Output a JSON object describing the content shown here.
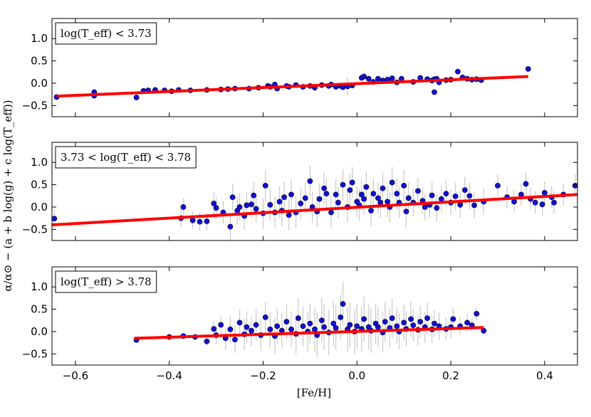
{
  "chart_data": {
    "type": "scatter",
    "xlabel": "[Fe/H]",
    "ylabel": "α/α⊙ − (a + b log(g) + c log(T_eff))",
    "xlim": [
      -0.65,
      0.47
    ],
    "ylim": [
      -0.75,
      1.45
    ],
    "x_ticks": [
      -0.6,
      -0.4,
      -0.2,
      0.0,
      0.2,
      0.4
    ],
    "x_tick_labels": [
      "−0.6",
      "−0.4",
      "−0.2",
      "0.0",
      "0.2",
      "0.4"
    ],
    "y_ticks": [
      -0.5,
      0.0,
      0.5,
      1.0
    ],
    "y_tick_labels": [
      "−0.5",
      "0.0",
      "0.5",
      "1.0"
    ],
    "grid": false,
    "colors": {
      "points": "#1010d0",
      "point_edge": "#000033",
      "fit_line": "#ff0000",
      "error_bars": "#c8c8c8"
    },
    "panels": [
      {
        "label": "log(T_eff) < 3.73",
        "fit": {
          "x": [
            -0.64,
            0.365
          ],
          "y": [
            -0.29,
            0.15
          ]
        },
        "points": [
          [
            -0.64,
            -0.31,
            0.03
          ],
          [
            -0.56,
            -0.28,
            0.03
          ],
          [
            -0.56,
            -0.2,
            0.03
          ],
          [
            -0.47,
            -0.32,
            0.03
          ],
          [
            -0.455,
            -0.17,
            0.03
          ],
          [
            -0.445,
            -0.16,
            0.03
          ],
          [
            -0.43,
            -0.15,
            0.03
          ],
          [
            -0.41,
            -0.16,
            0.03
          ],
          [
            -0.395,
            -0.18,
            0.03
          ],
          [
            -0.38,
            -0.15,
            0.03
          ],
          [
            -0.355,
            -0.16,
            0.03
          ],
          [
            -0.32,
            -0.15,
            0.03
          ],
          [
            -0.29,
            -0.14,
            0.03
          ],
          [
            -0.275,
            -0.13,
            0.04
          ],
          [
            -0.26,
            -0.12,
            0.04
          ],
          [
            -0.23,
            -0.12,
            0.04
          ],
          [
            -0.21,
            -0.1,
            0.04
          ],
          [
            -0.19,
            -0.06,
            0.04
          ],
          [
            -0.185,
            -0.08,
            0.05
          ],
          [
            -0.175,
            -0.03,
            0.05
          ],
          [
            -0.17,
            -0.12,
            0.05
          ],
          [
            -0.15,
            -0.06,
            0.05
          ],
          [
            -0.145,
            -0.08,
            0.05
          ],
          [
            -0.13,
            -0.04,
            0.05
          ],
          [
            -0.115,
            -0.08,
            0.05
          ],
          [
            -0.1,
            -0.06,
            0.05
          ],
          [
            -0.09,
            -0.1,
            0.05
          ],
          [
            -0.075,
            -0.04,
            0.05
          ],
          [
            -0.06,
            -0.06,
            0.05
          ],
          [
            -0.055,
            -0.03,
            0.05
          ],
          [
            -0.045,
            -0.08,
            0.05
          ],
          [
            -0.035,
            -0.06,
            0.05
          ],
          [
            -0.03,
            -0.09,
            0.05
          ],
          [
            -0.02,
            -0.07,
            0.2
          ],
          [
            -0.01,
            -0.05,
            0.05
          ],
          [
            0.01,
            0.12,
            0.08
          ],
          [
            0.015,
            0.15,
            0.08
          ],
          [
            0.025,
            0.1,
            0.08
          ],
          [
            0.035,
            0.03,
            0.05
          ],
          [
            0.045,
            0.1,
            0.05
          ],
          [
            0.055,
            0.06,
            0.05
          ],
          [
            0.065,
            0.08,
            0.05
          ],
          [
            0.075,
            0.11,
            0.05
          ],
          [
            0.085,
            0.02,
            0.05
          ],
          [
            0.095,
            0.1,
            0.05
          ],
          [
            0.12,
            0.03,
            0.05
          ],
          [
            0.135,
            0.12,
            0.05
          ],
          [
            0.15,
            0.09,
            0.05
          ],
          [
            0.16,
            0.06,
            0.05
          ],
          [
            0.165,
            0.09,
            0.05
          ],
          [
            0.17,
            0.1,
            0.05
          ],
          [
            0.165,
            -0.2,
            0.05
          ],
          [
            0.175,
            0.02,
            0.05
          ],
          [
            0.19,
            0.07,
            0.05
          ],
          [
            0.2,
            0.08,
            0.05
          ],
          [
            0.215,
            0.26,
            0.05
          ],
          [
            0.225,
            0.13,
            0.05
          ],
          [
            0.235,
            0.1,
            0.05
          ],
          [
            0.245,
            0.08,
            0.05
          ],
          [
            0.255,
            0.09,
            0.05
          ],
          [
            0.265,
            0.07,
            0.05
          ],
          [
            0.365,
            0.32,
            0.03
          ]
        ]
      },
      {
        "label": "3.73 < log(T_eff) < 3.78",
        "fit": {
          "x": [
            -0.65,
            0.47
          ],
          "y": [
            -0.4,
            0.28
          ]
        },
        "points": [
          [
            -0.645,
            -0.26,
            0.2
          ],
          [
            -0.375,
            -0.25,
            0.2
          ],
          [
            -0.37,
            0.0,
            0.2
          ],
          [
            -0.35,
            -0.3,
            0.2
          ],
          [
            -0.335,
            -0.33,
            0.2
          ],
          [
            -0.32,
            -0.32,
            0.2
          ],
          [
            -0.305,
            0.08,
            0.25
          ],
          [
            -0.3,
            -0.02,
            0.25
          ],
          [
            -0.285,
            -0.12,
            0.25
          ],
          [
            -0.27,
            -0.44,
            0.3
          ],
          [
            -0.265,
            0.22,
            0.3
          ],
          [
            -0.255,
            -0.08,
            0.3
          ],
          [
            -0.25,
            0.0,
            0.3
          ],
          [
            -0.24,
            -0.2,
            0.3
          ],
          [
            -0.235,
            0.04,
            0.3
          ],
          [
            -0.225,
            0.06,
            0.3
          ],
          [
            -0.22,
            0.26,
            0.3
          ],
          [
            -0.215,
            -0.04,
            0.3
          ],
          [
            -0.2,
            -0.14,
            0.35
          ],
          [
            -0.195,
            0.48,
            0.35
          ],
          [
            -0.185,
            0.05,
            0.35
          ],
          [
            -0.175,
            -0.12,
            0.35
          ],
          [
            -0.165,
            0.12,
            0.35
          ],
          [
            -0.16,
            -0.08,
            0.35
          ],
          [
            -0.155,
            0.22,
            0.35
          ],
          [
            -0.145,
            -0.18,
            0.35
          ],
          [
            -0.14,
            0.28,
            0.35
          ],
          [
            -0.13,
            -0.12,
            0.35
          ],
          [
            -0.12,
            0.08,
            0.35
          ],
          [
            -0.11,
            0.2,
            0.35
          ],
          [
            -0.1,
            0.58,
            0.35
          ],
          [
            -0.095,
            0.0,
            0.35
          ],
          [
            -0.085,
            -0.1,
            0.35
          ],
          [
            -0.08,
            0.18,
            0.35
          ],
          [
            -0.07,
            0.42,
            0.35
          ],
          [
            -0.065,
            0.3,
            0.35
          ],
          [
            -0.055,
            -0.12,
            0.35
          ],
          [
            -0.045,
            0.28,
            0.35
          ],
          [
            -0.04,
            0.1,
            0.35
          ],
          [
            -0.03,
            0.5,
            0.35
          ],
          [
            -0.02,
            0.0,
            0.35
          ],
          [
            -0.015,
            0.38,
            0.35
          ],
          [
            -0.01,
            0.55,
            0.35
          ],
          [
            0.0,
            0.12,
            0.35
          ],
          [
            0.005,
            0.04,
            0.35
          ],
          [
            0.01,
            0.28,
            0.35
          ],
          [
            0.015,
            0.18,
            0.35
          ],
          [
            0.02,
            0.45,
            0.35
          ],
          [
            0.03,
            -0.08,
            0.35
          ],
          [
            0.035,
            0.3,
            0.35
          ],
          [
            0.045,
            0.2,
            0.35
          ],
          [
            0.05,
            0.1,
            0.35
          ],
          [
            0.055,
            0.42,
            0.35
          ],
          [
            0.065,
            0.12,
            0.35
          ],
          [
            0.07,
            0.0,
            0.35
          ],
          [
            0.075,
            0.55,
            0.35
          ],
          [
            0.085,
            0.3,
            0.35
          ],
          [
            0.09,
            0.1,
            0.35
          ],
          [
            0.1,
            0.48,
            0.35
          ],
          [
            0.105,
            -0.1,
            0.35
          ],
          [
            0.11,
            0.2,
            0.35
          ],
          [
            0.12,
            0.1,
            0.3
          ],
          [
            0.13,
            0.36,
            0.3
          ],
          [
            0.14,
            0.14,
            0.3
          ],
          [
            0.145,
            0.0,
            0.3
          ],
          [
            0.155,
            0.05,
            0.3
          ],
          [
            0.16,
            0.26,
            0.3
          ],
          [
            0.17,
            -0.02,
            0.3
          ],
          [
            0.18,
            0.18,
            0.3
          ],
          [
            0.19,
            0.3,
            0.3
          ],
          [
            0.2,
            0.1,
            0.3
          ],
          [
            0.21,
            0.24,
            0.3
          ],
          [
            0.22,
            0.05,
            0.3
          ],
          [
            0.23,
            0.38,
            0.3
          ],
          [
            0.24,
            0.25,
            0.3
          ],
          [
            0.25,
            0.04,
            0.3
          ],
          [
            0.27,
            0.12,
            0.3
          ],
          [
            0.3,
            0.48,
            0.25
          ],
          [
            0.32,
            0.22,
            0.25
          ],
          [
            0.335,
            0.12,
            0.25
          ],
          [
            0.35,
            0.28,
            0.25
          ],
          [
            0.36,
            0.52,
            0.25
          ],
          [
            0.37,
            0.18,
            0.25
          ],
          [
            0.38,
            0.1,
            0.25
          ],
          [
            0.395,
            0.06,
            0.25
          ],
          [
            0.4,
            0.32,
            0.25
          ],
          [
            0.415,
            0.22,
            0.25
          ],
          [
            0.42,
            0.1,
            0.25
          ],
          [
            0.44,
            0.28,
            0.25
          ],
          [
            0.465,
            0.48,
            0.25
          ]
        ]
      },
      {
        "label": "log(T_eff) > 3.78",
        "fit": {
          "x": [
            -0.475,
            0.27
          ],
          "y": [
            -0.15,
            0.09
          ]
        },
        "points": [
          [
            -0.47,
            -0.19,
            0.05
          ],
          [
            -0.4,
            -0.12,
            0.05
          ],
          [
            -0.37,
            -0.1,
            0.05
          ],
          [
            -0.345,
            -0.12,
            0.05
          ],
          [
            -0.32,
            -0.22,
            0.1
          ],
          [
            -0.305,
            0.06,
            0.2
          ],
          [
            -0.3,
            -0.08,
            0.2
          ],
          [
            -0.29,
            0.15,
            0.2
          ],
          [
            -0.28,
            -0.15,
            0.25
          ],
          [
            -0.27,
            0.05,
            0.3
          ],
          [
            -0.26,
            -0.18,
            0.3
          ],
          [
            -0.25,
            0.2,
            0.3
          ],
          [
            -0.24,
            -0.06,
            0.35
          ],
          [
            -0.235,
            0.1,
            0.35
          ],
          [
            -0.225,
            0.02,
            0.35
          ],
          [
            -0.215,
            0.15,
            0.35
          ],
          [
            -0.205,
            -0.08,
            0.35
          ],
          [
            -0.195,
            0.32,
            0.35
          ],
          [
            -0.185,
            0.05,
            0.4
          ],
          [
            -0.175,
            -0.1,
            0.4
          ],
          [
            -0.17,
            0.12,
            0.4
          ],
          [
            -0.16,
            0.02,
            0.4
          ],
          [
            -0.15,
            0.22,
            0.4
          ],
          [
            -0.14,
            0.05,
            0.4
          ],
          [
            -0.13,
            -0.05,
            0.45
          ],
          [
            -0.125,
            0.3,
            0.45
          ],
          [
            -0.115,
            0.12,
            0.45
          ],
          [
            -0.105,
            0.0,
            0.45
          ],
          [
            -0.1,
            0.18,
            0.45
          ],
          [
            -0.09,
            0.05,
            0.5
          ],
          [
            -0.085,
            -0.08,
            0.5
          ],
          [
            -0.075,
            0.25,
            0.5
          ],
          [
            -0.07,
            0.1,
            0.5
          ],
          [
            -0.06,
            -0.02,
            0.5
          ],
          [
            -0.05,
            0.18,
            0.5
          ],
          [
            -0.045,
            0.08,
            0.5
          ],
          [
            -0.035,
            0.32,
            0.5
          ],
          [
            -0.03,
            0.62,
            0.5
          ],
          [
            -0.02,
            0.05,
            0.5
          ],
          [
            -0.015,
            0.15,
            0.5
          ],
          [
            -0.005,
            0.0,
            0.5
          ],
          [
            0.0,
            0.12,
            0.5
          ],
          [
            0.01,
            0.06,
            0.5
          ],
          [
            0.015,
            0.28,
            0.5
          ],
          [
            0.025,
            0.1,
            0.5
          ],
          [
            0.03,
            0.02,
            0.5
          ],
          [
            0.04,
            0.18,
            0.45
          ],
          [
            0.045,
            0.1,
            0.45
          ],
          [
            0.055,
            -0.02,
            0.45
          ],
          [
            0.06,
            0.22,
            0.45
          ],
          [
            0.07,
            0.08,
            0.45
          ],
          [
            0.075,
            0.3,
            0.45
          ],
          [
            0.085,
            0.12,
            0.4
          ],
          [
            0.09,
            0.0,
            0.4
          ],
          [
            0.1,
            0.2,
            0.4
          ],
          [
            0.105,
            0.06,
            0.4
          ],
          [
            0.115,
            0.28,
            0.4
          ],
          [
            0.12,
            0.14,
            0.35
          ],
          [
            0.13,
            0.04,
            0.35
          ],
          [
            0.135,
            0.22,
            0.35
          ],
          [
            0.145,
            0.1,
            0.35
          ],
          [
            0.15,
            0.3,
            0.35
          ],
          [
            0.16,
            0.05,
            0.3
          ],
          [
            0.165,
            0.18,
            0.3
          ],
          [
            0.175,
            0.12,
            0.3
          ],
          [
            0.19,
            0.06,
            0.25
          ],
          [
            0.2,
            0.1,
            0.25
          ],
          [
            0.205,
            0.28,
            0.25
          ],
          [
            0.22,
            0.12,
            0.2
          ],
          [
            0.235,
            0.2,
            0.2
          ],
          [
            0.245,
            0.14,
            0.15
          ],
          [
            0.255,
            0.4,
            0.15
          ],
          [
            0.27,
            0.02,
            0.1
          ]
        ]
      }
    ]
  }
}
